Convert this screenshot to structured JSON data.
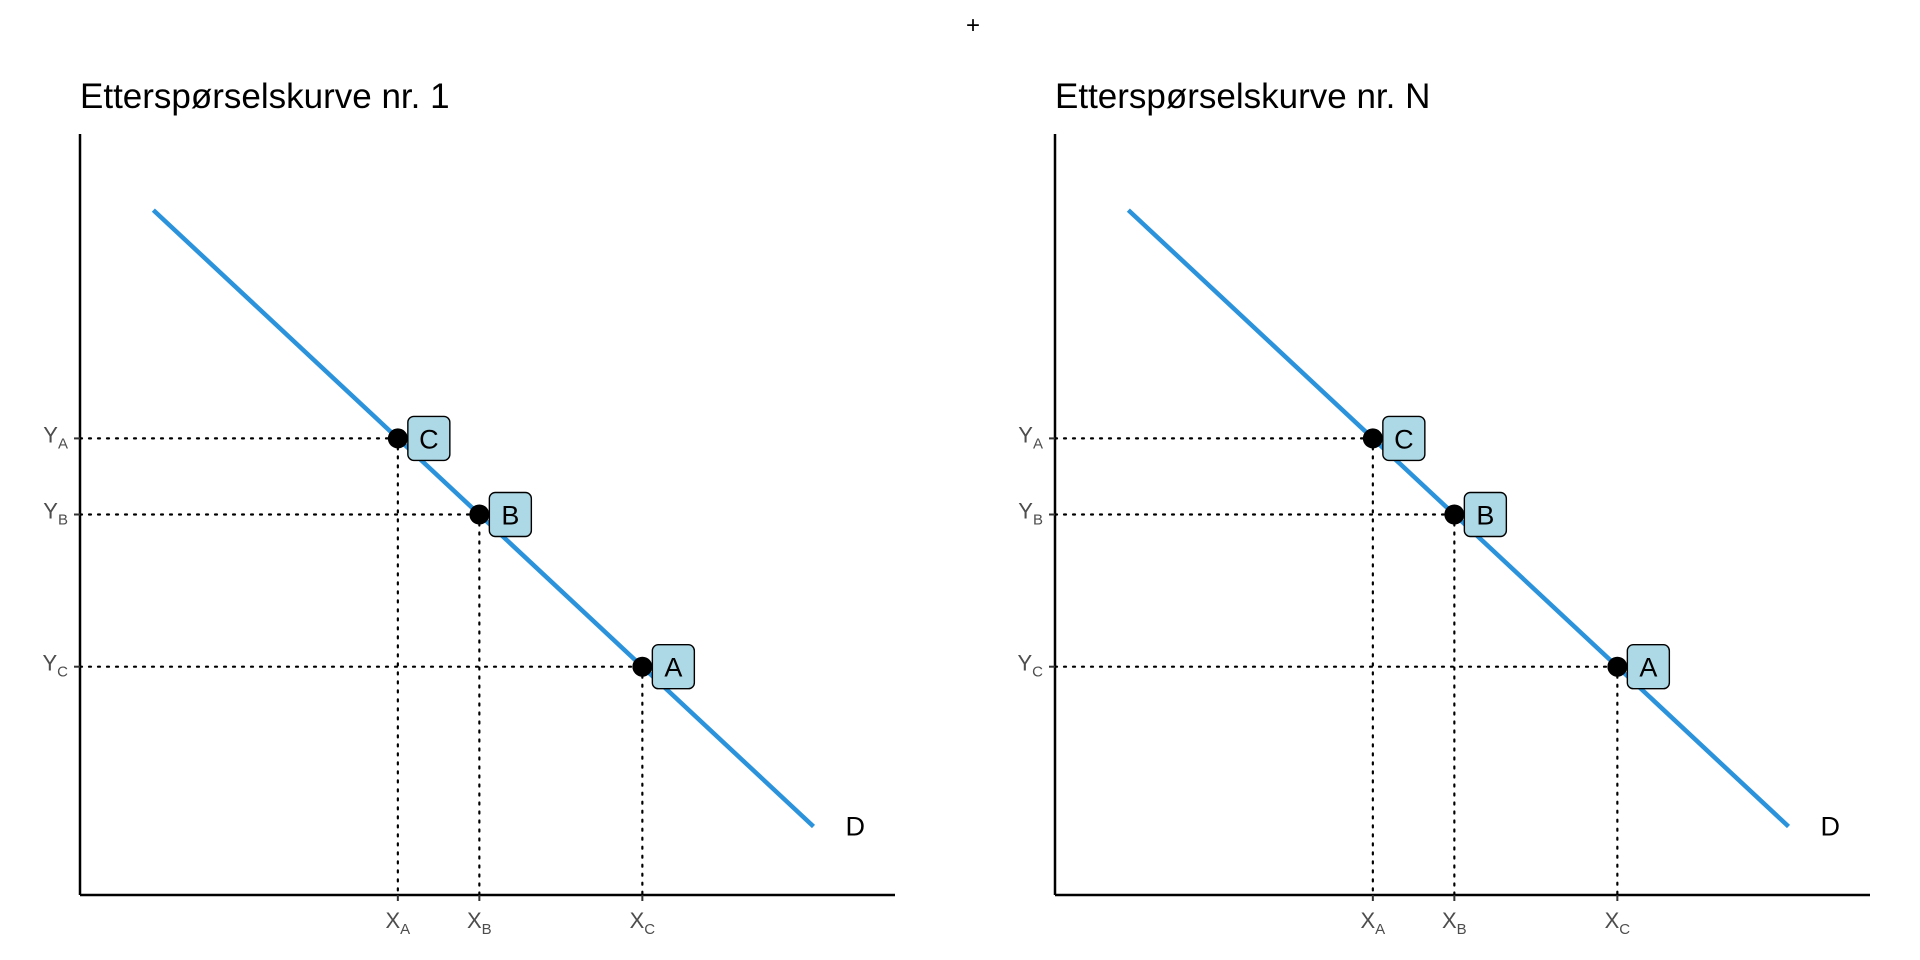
{
  "combiner": "+",
  "chart_data": [
    {
      "type": "line",
      "title": "Etterspørselskurve nr. 1",
      "curve_label": "D",
      "curve_color": "#2b93db",
      "box_color": "#add8e6",
      "xlim": [
        0,
        10
      ],
      "ylim": [
        0,
        10
      ],
      "curve": [
        {
          "x": 0.9,
          "y": 9.0
        },
        {
          "x": 9.0,
          "y": 0.9
        }
      ],
      "points": [
        {
          "label": "C",
          "x": 3.9,
          "y": 6.0,
          "xtick": "X",
          "xsub": "A",
          "ytick": "Y",
          "ysub": "A"
        },
        {
          "label": "B",
          "x": 4.9,
          "y": 5.0,
          "xtick": "X",
          "xsub": "B",
          "ytick": "Y",
          "ysub": "B"
        },
        {
          "label": "A",
          "x": 6.9,
          "y": 3.0,
          "xtick": "X",
          "xsub": "C",
          "ytick": "Y",
          "ysub": "C"
        }
      ],
      "grid": false
    },
    {
      "type": "line",
      "title": "Etterspørselskurve nr. N",
      "curve_label": "D",
      "curve_color": "#2b93db",
      "box_color": "#add8e6",
      "xlim": [
        0,
        10
      ],
      "ylim": [
        0,
        10
      ],
      "curve": [
        {
          "x": 0.9,
          "y": 9.0
        },
        {
          "x": 9.0,
          "y": 0.9
        }
      ],
      "points": [
        {
          "label": "C",
          "x": 3.9,
          "y": 6.0,
          "xtick": "X",
          "xsub": "A",
          "ytick": "Y",
          "ysub": "A"
        },
        {
          "label": "B",
          "x": 4.9,
          "y": 5.0,
          "xtick": "X",
          "xsub": "B",
          "ytick": "Y",
          "ysub": "B"
        },
        {
          "label": "A",
          "x": 6.9,
          "y": 3.0,
          "xtick": "X",
          "xsub": "C",
          "ytick": "Y",
          "ysub": "C"
        }
      ],
      "grid": false
    }
  ]
}
